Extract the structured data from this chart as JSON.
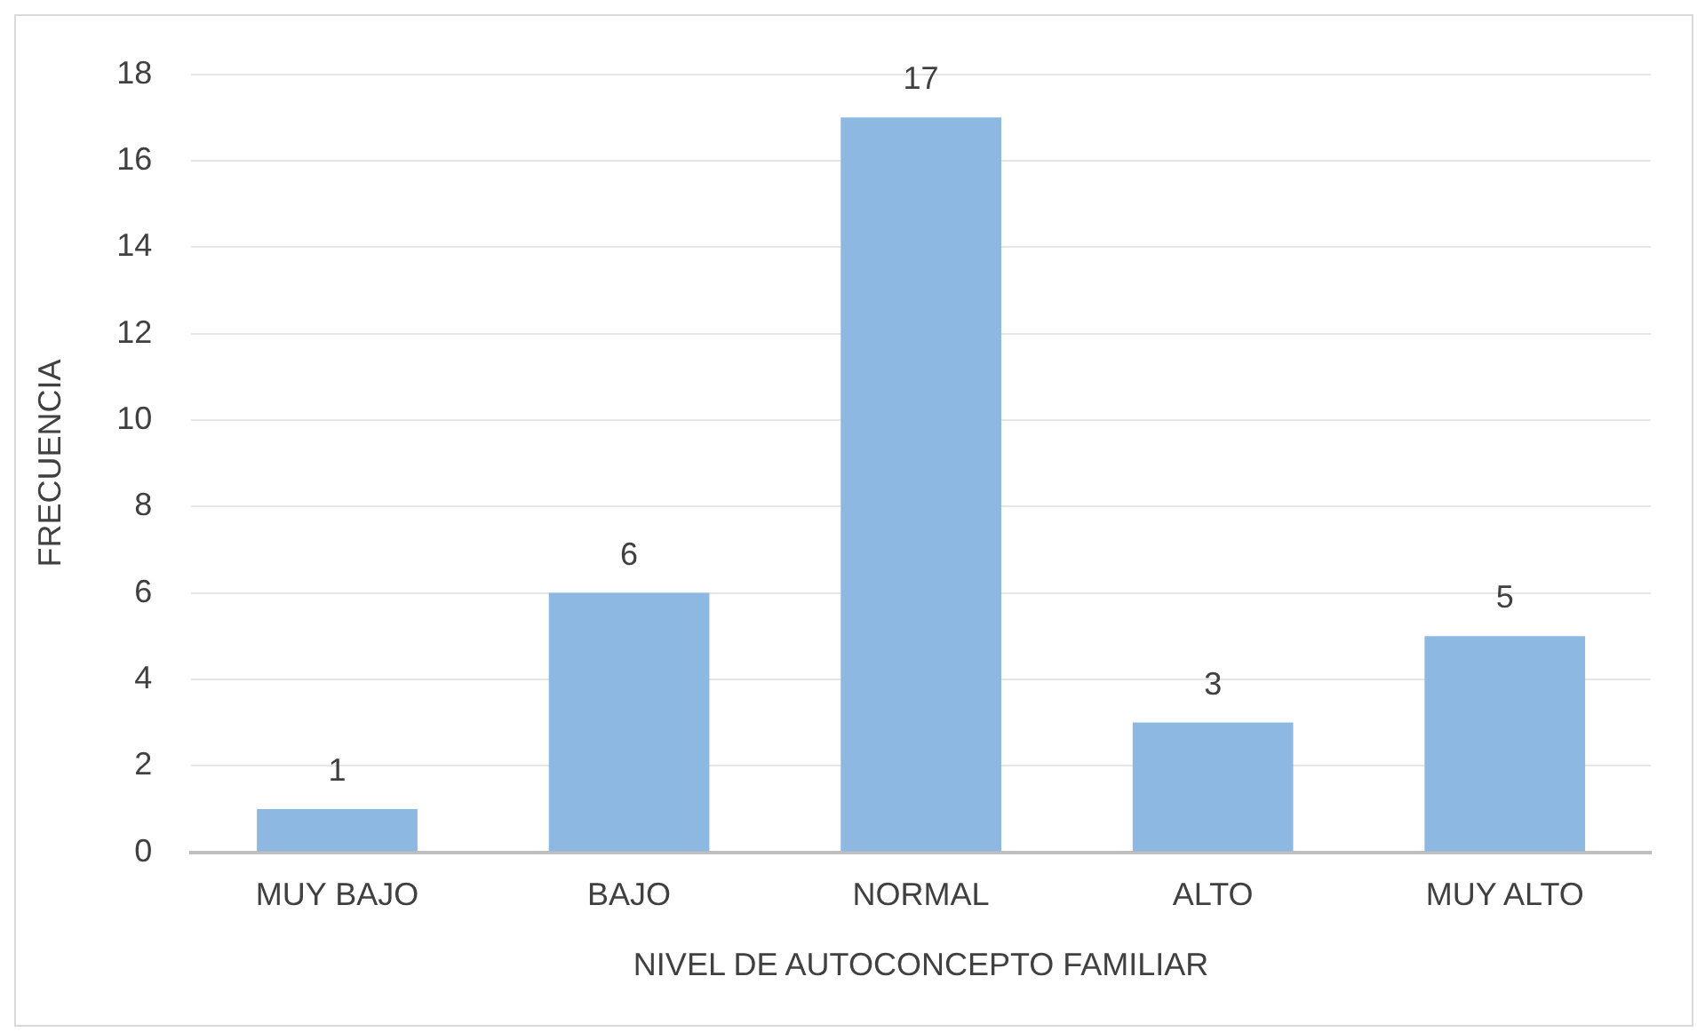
{
  "chart_data": {
    "type": "bar",
    "xlabel": "NIVEL DE AUTOCONCEPTO FAMILIAR",
    "ylabel": "FRECUENCIA",
    "categories": [
      "MUY BAJO",
      "BAJO",
      "NORMAL",
      "ALTO",
      "MUY ALTO"
    ],
    "values": [
      1,
      6,
      17,
      3,
      5
    ],
    "color": "#8cb8e2",
    "ylim": [
      0,
      18
    ],
    "yticks": [
      0,
      2,
      4,
      6,
      8,
      10,
      12,
      14,
      16,
      18
    ],
    "grid": "y",
    "data_labels": true,
    "legend": false
  }
}
